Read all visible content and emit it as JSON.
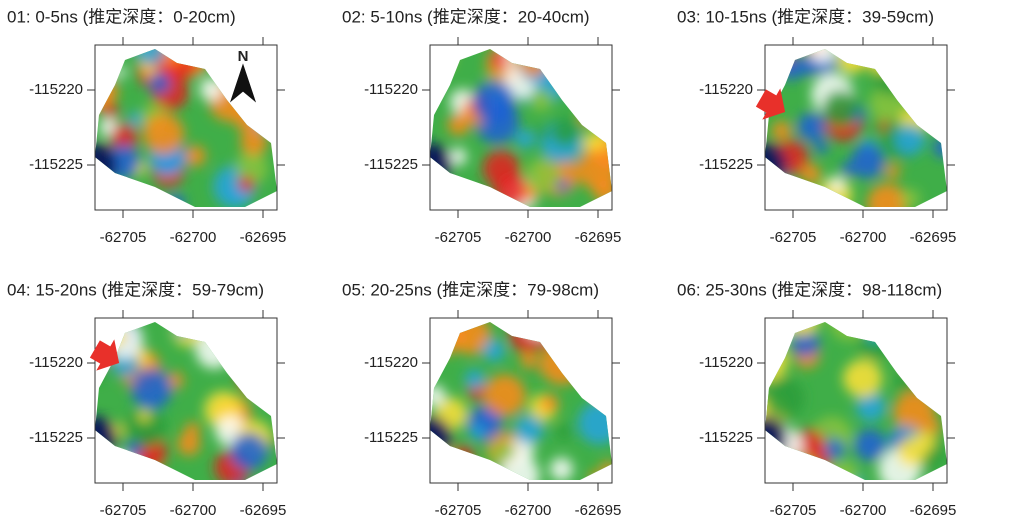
{
  "chart_data": [
    {
      "type": "map",
      "title": "01: 0-5ns (推定深度：0-20cm)",
      "annotation": "N",
      "xlim": [
        -62707,
        -62694
      ],
      "ylim": [
        -115228,
        -115217
      ],
      "xticks": [
        -62705,
        -62700,
        -62695
      ],
      "yticks": [
        -115220,
        -115225
      ]
    },
    {
      "type": "map",
      "title": "02: 5-10ns (推定深度：20-40cm)",
      "xlim": [
        -62707,
        -62694
      ],
      "ylim": [
        -115228,
        -115217
      ],
      "xticks": [
        -62705,
        -62700,
        -62695
      ],
      "yticks": [
        -115220,
        -115225
      ]
    },
    {
      "type": "map",
      "title": "03: 10-15ns (推定深度：39-59cm)",
      "xlim": [
        -62707,
        -62694
      ],
      "ylim": [
        -115228,
        -115217
      ],
      "xticks": [
        -62705,
        -62700,
        -62695
      ],
      "yticks": [
        -115220,
        -115225
      ]
    },
    {
      "type": "map",
      "title": "04: 15-20ns (推定深度：59-79cm)",
      "xlim": [
        -62707,
        -62694
      ],
      "ylim": [
        -115228,
        -115217
      ],
      "xticks": [
        -62705,
        -62700,
        -62695
      ],
      "yticks": [
        -115220,
        -115225
      ]
    },
    {
      "type": "map",
      "title": "05: 20-25ns (推定深度：79-98cm)",
      "xlim": [
        -62707,
        -62694
      ],
      "ylim": [
        -115228,
        -115217
      ],
      "xticks": [
        -62705,
        -62700,
        -62695
      ],
      "yticks": [
        -115220,
        -115225
      ]
    },
    {
      "type": "map",
      "title": "06: 25-30ns (推定深度：98-118cm)",
      "xlim": [
        -62707,
        -62694
      ],
      "ylim": [
        -115228,
        -115217
      ],
      "xticks": [
        -62705,
        -62700,
        -62695
      ],
      "yticks": [
        -115220,
        -115225
      ]
    }
  ]
}
